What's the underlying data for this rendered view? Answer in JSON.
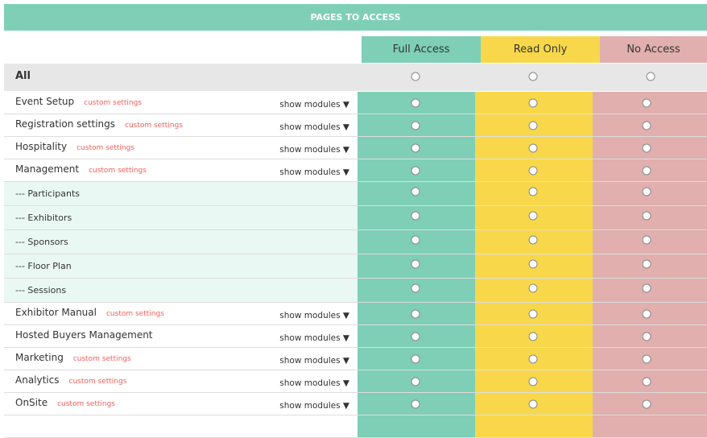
{
  "title": "PAGES TO ACCESS",
  "columns": [
    {
      "label": "Full Access",
      "color": "#7ecfb6"
    },
    {
      "label": "Read Only",
      "color": "#f8d84a"
    },
    {
      "label": "No Access",
      "color": "#e0afae"
    }
  ],
  "all_label": "All",
  "show_modules_label": "show modules ▼",
  "rows": [
    {
      "name": "Event Setup",
      "custom": "custom settings",
      "modules": true
    },
    {
      "name": "Registration settings",
      "custom": "custom settings",
      "modules": true
    },
    {
      "name": "Hospitality",
      "custom": "custom settings",
      "modules": true
    },
    {
      "name": "Management",
      "custom": "custom settings",
      "modules": true
    },
    {
      "name": "--- Participants",
      "sub": true
    },
    {
      "name": "--- Exhibitors",
      "sub": true
    },
    {
      "name": "--- Sponsors",
      "sub": true
    },
    {
      "name": "--- Floor Plan",
      "sub": true
    },
    {
      "name": "--- Sessions",
      "sub": true
    },
    {
      "name": "Exhibitor Manual",
      "custom": "custom settings",
      "modules": true
    },
    {
      "name": "Hosted Buyers Management",
      "modules": true
    },
    {
      "name": "Marketing",
      "custom": "custom settings",
      "modules": true
    },
    {
      "name": "Analytics",
      "custom": "custom settings",
      "modules": true
    },
    {
      "name": "OnSite",
      "custom": "custom settings",
      "modules": true
    },
    {
      "name": "",
      "modules": false
    }
  ]
}
